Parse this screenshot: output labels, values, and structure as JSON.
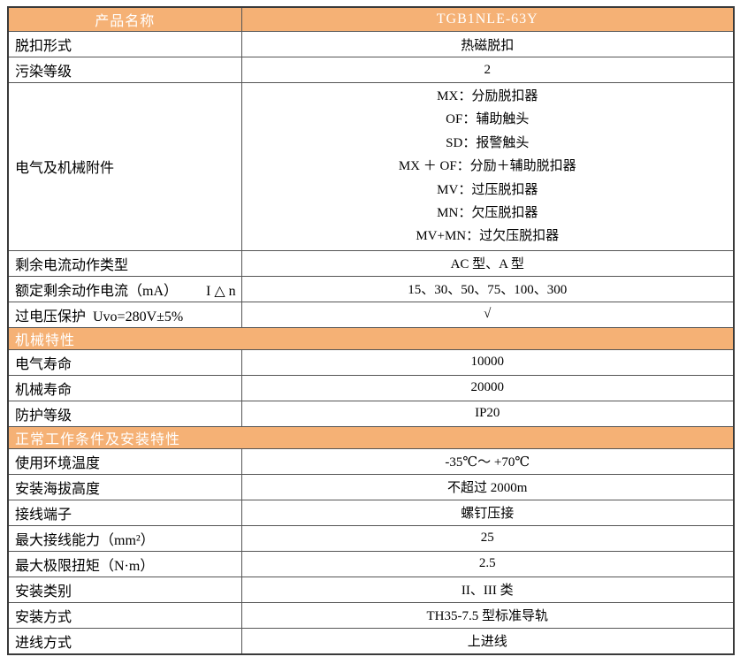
{
  "colors": {
    "accent_orange": "#F5B175",
    "header_text": "#FFFFFF",
    "border": "#555555",
    "text": "#000000"
  },
  "table": {
    "header": {
      "product_label": "产品名称",
      "product_value": "TGB1NLE-63Y"
    },
    "sections": [
      {
        "type": "rows",
        "rows": [
          {
            "label": "脱扣形式",
            "value": "热磁脱扣"
          },
          {
            "label": "污染等级",
            "value": "2"
          },
          {
            "label": "电气及机械附件",
            "lines": [
              "MX：分励脱扣器",
              "OF：辅助触头",
              "SD：报警触头",
              "MX ＋ OF：分励＋辅助脱扣器",
              "MV：过压脱扣器",
              "MN：欠压脱扣器",
              "MV+MN：过欠压脱扣器"
            ]
          },
          {
            "label": "剩余电流动作类型",
            "value": "AC 型、A 型"
          },
          {
            "label": "额定剩余动作电流（mA）        I △ n",
            "value": "15、30、50、75、100、300"
          },
          {
            "label": "过电压保护  Uvo=280V±5%",
            "value": "√"
          }
        ]
      },
      {
        "type": "section",
        "title": "机械特性"
      },
      {
        "type": "rows",
        "rows": [
          {
            "label": "电气寿命",
            "value": "10000"
          },
          {
            "label": "机械寿命",
            "value": "20000"
          },
          {
            "label": "防护等级",
            "value": "IP20"
          }
        ]
      },
      {
        "type": "section",
        "title": "正常工作条件及安装特性"
      },
      {
        "type": "rows",
        "rows": [
          {
            "label": "使用环境温度",
            "value": "-35℃～ +70℃"
          },
          {
            "label": "安装海拔高度",
            "value": "不超过 2000m"
          },
          {
            "label": "接线端子",
            "value": "螺钉压接"
          },
          {
            "label": "最大接线能力（mm²）",
            "value": "25"
          },
          {
            "label": "最大极限扭矩（N·m）",
            "value": "2.5"
          },
          {
            "label": "安装类别",
            "value": "II、III 类"
          },
          {
            "label": "安装方式",
            "value": "TH35-7.5 型标准导轨"
          },
          {
            "label": "进线方式",
            "value": "上进线"
          }
        ]
      }
    ]
  }
}
